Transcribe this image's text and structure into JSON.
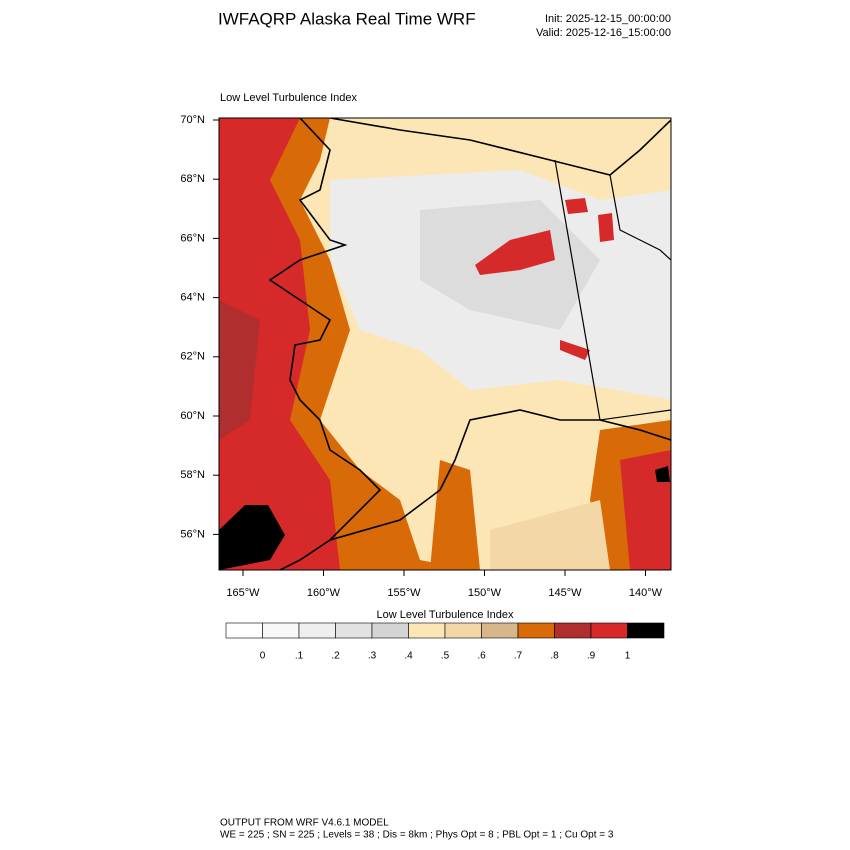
{
  "header": {
    "title": "IWFAQRP Alaska Real Time WRF",
    "init": "Init: 2025-12-15_00:00:00",
    "valid": "Valid: 2025-12-16_15:00:00"
  },
  "map": {
    "title": "Low Level Turbulence Index",
    "lat_labels": [
      {
        "value": 70,
        "label": "70°N"
      },
      {
        "value": 68,
        "label": "68°N"
      },
      {
        "value": 66,
        "label": "66°N"
      },
      {
        "value": 64,
        "label": "64°N"
      },
      {
        "value": 62,
        "label": "62°N"
      },
      {
        "value": 60,
        "label": "60°N"
      },
      {
        "value": 58,
        "label": "58°N"
      },
      {
        "value": 56,
        "label": "56°N"
      }
    ],
    "lon_labels": [
      {
        "value": -165,
        "label": "165°W"
      },
      {
        "value": -160,
        "label": "160°W"
      },
      {
        "value": -155,
        "label": "155°W"
      },
      {
        "value": -150,
        "label": "150°W"
      },
      {
        "value": -145,
        "label": "145°W"
      },
      {
        "value": -140,
        "label": "140°W"
      }
    ]
  },
  "colorbar": {
    "title": "Low Level Turbulence Index",
    "colors": [
      "#ffffff",
      "#f8f8f8",
      "#efefef",
      "#e2e2e2",
      "#d4d4d4",
      "#fde6b6",
      "#f3d7a6",
      "#d7b68a",
      "#d86a08",
      "#b02e2e",
      "#d62a2a",
      "#000000"
    ],
    "ticks": [
      {
        "value": 0,
        "label": "0"
      },
      {
        "value": 0.1,
        "label": ".1"
      },
      {
        "value": 0.2,
        "label": ".2"
      },
      {
        "value": 0.3,
        "label": ".3"
      },
      {
        "value": 0.4,
        "label": ".4"
      },
      {
        "value": 0.5,
        "label": ".5"
      },
      {
        "value": 0.6,
        "label": ".6"
      },
      {
        "value": 0.7,
        "label": ".7"
      },
      {
        "value": 0.8,
        "label": ".8"
      },
      {
        "value": 0.9,
        "label": ".9"
      },
      {
        "value": 1,
        "label": "1"
      }
    ]
  },
  "footer": {
    "line1": "OUTPUT FROM WRF V4.6.1 MODEL",
    "line2": "WE = 225 ; SN = 225 ; Levels = 38 ; Dis = 8km ; Phys Opt = 8 ; PBL Opt = 1 ; Cu Opt = 3"
  }
}
